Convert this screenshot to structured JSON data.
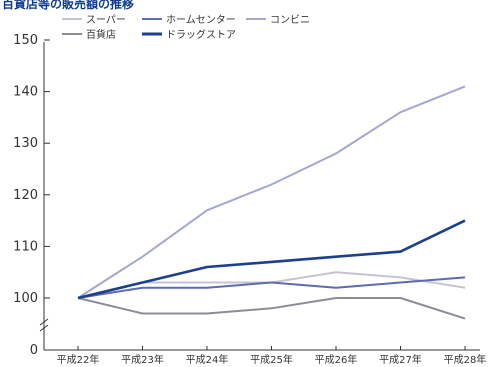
{
  "chart_data": {
    "type": "line",
    "title": "百貨店等の販売額の推移",
    "categories": [
      "平成22年",
      "平成23年",
      "平成24年",
      "平成25年",
      "平成26年",
      "平成27年",
      "平成28年"
    ],
    "ylim": [
      95,
      150
    ],
    "yticks": [
      150,
      140,
      130,
      120,
      110,
      100,
      0
    ],
    "y_break": true,
    "grid": false,
    "legend_position": "top-left",
    "series": [
      {
        "name": "スーパー",
        "color": "#c4c4d2",
        "values": [
          100,
          103,
          103,
          103,
          105,
          104,
          102
        ]
      },
      {
        "name": "ホームセンター",
        "color": "#5b6bb6",
        "values": [
          100,
          102,
          102,
          103,
          102,
          103,
          104
        ]
      },
      {
        "name": "コンビニ",
        "color": "#a3a8d0",
        "values": [
          100,
          108,
          117,
          122,
          128,
          136,
          141
        ]
      },
      {
        "name": "百貨店",
        "color": "#8c8c99",
        "values": [
          100,
          97,
          97,
          98,
          100,
          100,
          96
        ]
      },
      {
        "name": "ドラッグストア",
        "color": "#1d3f8f",
        "values": [
          100,
          103,
          106,
          107,
          108,
          109,
          115
        ]
      }
    ]
  }
}
